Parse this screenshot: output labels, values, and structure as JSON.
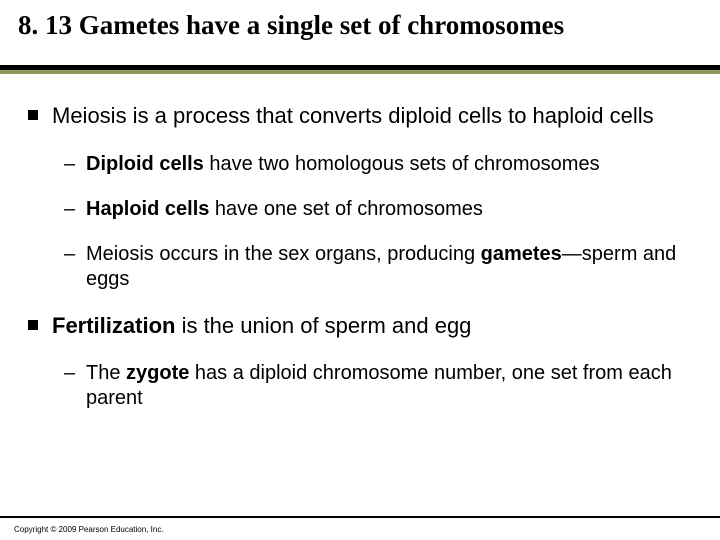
{
  "colors": {
    "background": "#ffffff",
    "text": "#000000",
    "rule_dark": "#000000",
    "rule_olive": "#8a9a5b"
  },
  "typography": {
    "title_family": "Times New Roman",
    "title_size_pt": 27,
    "title_weight": "bold",
    "body_family": "Verdana",
    "l1_size_pt": 22,
    "l2_size_pt": 20,
    "copyright_family": "Arial",
    "copyright_size_pt": 8
  },
  "title": "8. 13 Gametes have a single set of chromosomes",
  "bullets": [
    {
      "level": 1,
      "runs": [
        {
          "text": "Meiosis is a process that converts diploid cells to haploid cells",
          "bold": false
        }
      ]
    },
    {
      "level": 2,
      "runs": [
        {
          "text": "Diploid cells",
          "bold": true
        },
        {
          "text": " have two homologous sets of chromosomes",
          "bold": false
        }
      ]
    },
    {
      "level": 2,
      "runs": [
        {
          "text": "Haploid cells",
          "bold": true
        },
        {
          "text": " have one set of chromosomes",
          "bold": false
        }
      ]
    },
    {
      "level": 2,
      "runs": [
        {
          "text": "Meiosis occurs in the sex organs, producing ",
          "bold": false
        },
        {
          "text": "gametes",
          "bold": true
        },
        {
          "text": "—sperm and eggs",
          "bold": false
        }
      ]
    },
    {
      "level": 1,
      "runs": [
        {
          "text": "Fertilization",
          "bold": true
        },
        {
          "text": " is the union of sperm and egg",
          "bold": false
        }
      ]
    },
    {
      "level": 2,
      "runs": [
        {
          "text": "The ",
          "bold": false
        },
        {
          "text": "zygote",
          "bold": true
        },
        {
          "text": " has a diploid chromosome number, one set from each parent",
          "bold": false
        }
      ]
    }
  ],
  "markers": {
    "l2_dash": "–"
  },
  "copyright": "Copyright © 2009 Pearson Education, Inc."
}
